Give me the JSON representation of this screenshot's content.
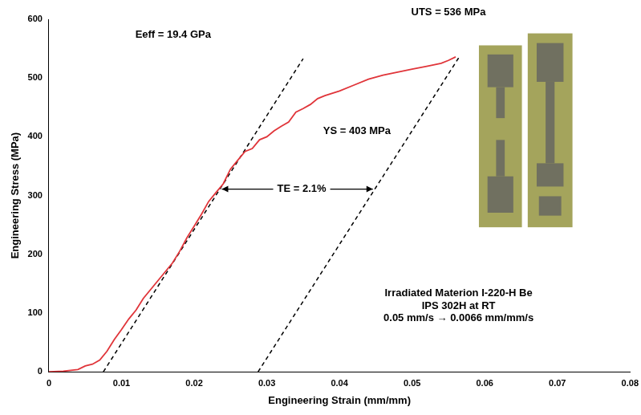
{
  "chart_data": {
    "type": "line",
    "x_label": "Engineering Strain (mm/mm)",
    "y_label": "Engineering Stress (MPa)",
    "xlim": [
      0,
      0.08
    ],
    "xticks": [
      0,
      0.01,
      0.02,
      0.03,
      0.04,
      0.05,
      0.06,
      0.07,
      0.08
    ],
    "ylim": [
      0,
      600
    ],
    "yticks": [
      0,
      100,
      200,
      300,
      400,
      500,
      600
    ],
    "grid": false,
    "series": [
      {
        "color": "#e0353a",
        "line_style": "solid",
        "x": [
          0,
          0.002,
          0.004,
          0.005,
          0.006,
          0.007,
          0.008,
          0.009,
          0.01,
          0.011,
          0.012,
          0.013,
          0.014,
          0.015,
          0.016,
          0.017,
          0.018,
          0.019,
          0.02,
          0.021,
          0.022,
          0.023,
          0.024,
          0.025,
          0.026,
          0.027,
          0.028,
          0.029,
          0.03,
          0.031,
          0.032,
          0.033,
          0.034,
          0.035,
          0.036,
          0.037,
          0.038,
          0.04,
          0.042,
          0.044,
          0.046,
          0.048,
          0.05,
          0.052,
          0.054,
          0.055,
          0.056
        ],
        "values": [
          0,
          1,
          4,
          10,
          13,
          20,
          35,
          55,
          72,
          90,
          105,
          125,
          140,
          155,
          170,
          185,
          205,
          228,
          248,
          268,
          290,
          305,
          320,
          345,
          360,
          375,
          380,
          395,
          400,
          410,
          418,
          425,
          442,
          448,
          455,
          465,
          470,
          478,
          488,
          498,
          505,
          510,
          515,
          520,
          525,
          530,
          536
        ]
      },
      {
        "color": "#000000",
        "line_style": "dashed",
        "x": [
          0.0075,
          0.035
        ],
        "values": [
          0,
          533
        ]
      },
      {
        "color": "#000000",
        "line_style": "dashed",
        "x": [
          0.0288,
          0.0565
        ],
        "values": [
          0,
          536
        ]
      }
    ],
    "annotations": [
      {
        "text": "UTS = 536 MPa",
        "x": 0.055,
        "y": 612
      },
      {
        "text": "Eeff = 19.4 GPa",
        "x": 0.0171,
        "y": 574
      },
      {
        "text": "YS = 403 MPa",
        "x": 0.0424,
        "y": 410
      },
      {
        "text": "TE = 2.1%",
        "x": 0.0348,
        "y": 311,
        "arrow_from": 0.0238,
        "arrow_to": 0.0446
      },
      {
        "text": "Irradiated Materion I-220-H Be",
        "x": 0.0564,
        "y": 134
      },
      {
        "text": "IPS 302H at RT",
        "x": 0.0564,
        "y": 112
      },
      {
        "text": "0.05 mm/s → 0.0066 mm/mm/s",
        "x": 0.0564,
        "y": 91
      }
    ]
  }
}
